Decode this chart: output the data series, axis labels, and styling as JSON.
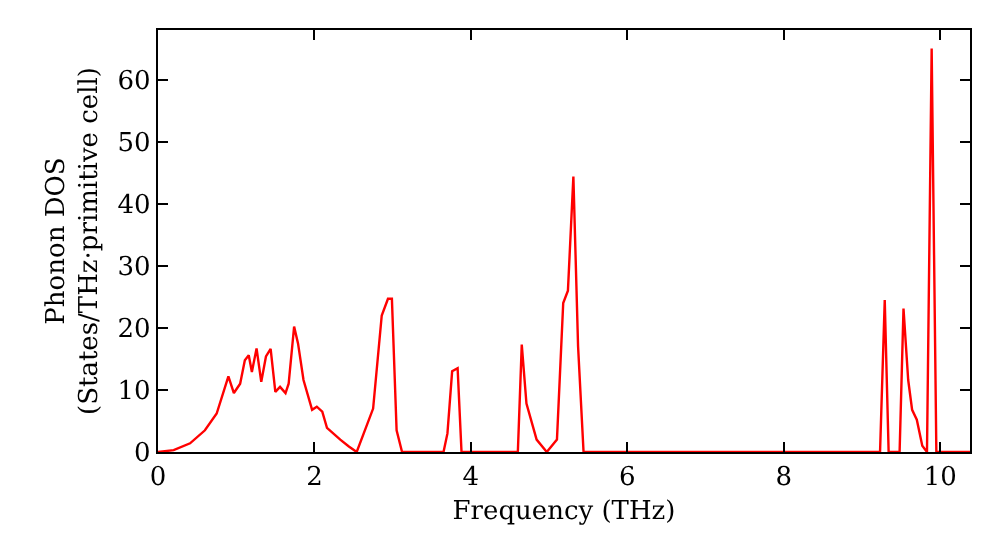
{
  "chart_data": {
    "type": "line",
    "xlabel": "Frequency (THz)",
    "ylabel": "Phonon DOS\n(States/THz·primitive cell)",
    "xlim": [
      0,
      10.38
    ],
    "ylim": [
      0,
      68
    ],
    "xticks": [
      0,
      2,
      4,
      6,
      8,
      10
    ],
    "yticks": [
      0,
      10,
      20,
      30,
      40,
      50,
      60
    ],
    "marker": "none",
    "line_style": "solid",
    "series": [
      {
        "color": "#ff0000",
        "x": [
          0,
          0.2,
          0.41,
          0.6,
          0.75,
          0.9,
          0.97,
          1.05,
          1.11,
          1.16,
          1.2,
          1.26,
          1.32,
          1.38,
          1.44,
          1.5,
          1.56,
          1.63,
          1.67,
          1.74,
          1.79,
          1.86,
          1.97,
          2.03,
          2.1,
          2.16,
          2.33,
          2.44,
          2.54,
          2.75,
          2.86,
          2.94,
          2.99,
          3.05,
          3.12,
          3.65,
          3.7,
          3.76,
          3.83,
          3.88,
          4.6,
          4.65,
          4.71,
          4.84,
          4.97,
          5.1,
          5.18,
          5.24,
          5.31,
          5.37,
          5.44,
          9.23,
          9.29,
          9.34,
          9.48,
          9.53,
          9.59,
          9.64,
          9.7,
          9.77,
          9.83,
          9.89,
          9.95,
          10.38
        ],
        "values": [
          0,
          0.3,
          1.4,
          3.5,
          6.2,
          12.2,
          9.5,
          11,
          14.8,
          15.6,
          12.9,
          16.7,
          11.3,
          15.4,
          16.6,
          9.7,
          10.5,
          9.5,
          11,
          20.2,
          17.5,
          11.6,
          6.8,
          7.3,
          6.5,
          3.9,
          2.0,
          0.9,
          0,
          7,
          22,
          24.7,
          24.7,
          3.5,
          0,
          0,
          3,
          13,
          13.5,
          0,
          0,
          17.3,
          7.8,
          2,
          0,
          2,
          24,
          26,
          44.4,
          17,
          0,
          0,
          24.5,
          0,
          0,
          23.1,
          11.6,
          6.8,
          5.2,
          1,
          0,
          65,
          0,
          0
        ]
      }
    ]
  }
}
